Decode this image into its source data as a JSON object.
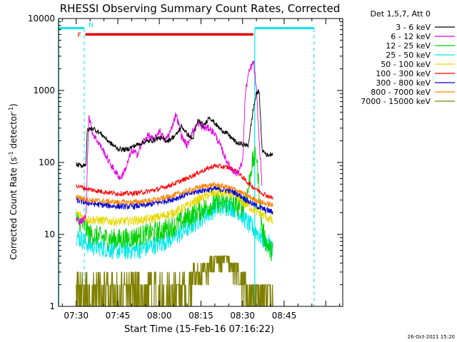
{
  "chart_data": {
    "type": "line",
    "title": "RHESSI Observing Summary Count Rates, Corrected",
    "xlabel": "Start Time (15-Feb-16 07:16:22)",
    "ylabel_main": "Corrected Count Rate (s",
    "ylabel_sup": "-1",
    "ylabel_mid": " detector",
    "ylabel_end": ")",
    "xlim_minutes": [
      -6.37,
      96.13
    ],
    "ylim": [
      1,
      10000
    ],
    "yscale": "log",
    "x_ticks": [
      {
        "m": 0,
        "label": "07:30"
      },
      {
        "m": 15,
        "label": "07:45"
      },
      {
        "m": 30,
        "label": "08:00"
      },
      {
        "m": 45,
        "label": "08:15"
      },
      {
        "m": 60,
        "label": "08:30"
      },
      {
        "m": 75,
        "label": "08:45"
      }
    ],
    "y_ticks": [
      {
        "v": 1,
        "label": "1"
      },
      {
        "v": 10,
        "label": "10"
      },
      {
        "v": 100,
        "label": "100"
      },
      {
        "v": 1000,
        "label": "1000"
      },
      {
        "v": 10000,
        "label": "10000"
      }
    ],
    "legend_position": "outside-right",
    "legend_header": "Det 1,5,7, Att 0",
    "series": [
      {
        "name": "3 - 6 keV",
        "color": "#000000",
        "x": [
          0,
          2,
          3.5,
          4,
          6,
          9,
          12,
          15,
          18,
          21,
          24,
          27,
          30,
          33,
          36,
          38,
          40,
          42,
          44,
          46,
          48,
          50,
          52,
          54,
          56,
          58,
          60,
          61,
          62,
          63,
          64,
          65,
          66,
          67,
          69,
          71
        ],
        "y": [
          93,
          90,
          95,
          280,
          300,
          250,
          190,
          155,
          150,
          170,
          190,
          200,
          220,
          200,
          240,
          320,
          250,
          210,
          390,
          320,
          430,
          350,
          290,
          260,
          220,
          185,
          180,
          175,
          170,
          320,
          600,
          900,
          1000,
          150,
          125,
          135
        ]
      },
      {
        "name": "6 - 12 keV",
        "color": "#e000e0",
        "x": [
          0,
          2,
          3.5,
          4.5,
          6,
          8,
          10,
          12,
          14,
          16,
          18,
          20,
          22,
          24,
          26,
          28,
          30,
          32,
          34,
          36,
          38,
          39,
          40,
          42,
          44,
          46,
          48,
          50,
          52,
          54,
          56,
          58,
          60,
          61,
          62,
          63,
          64,
          65,
          66,
          67
        ],
        "y": [
          16,
          15,
          18,
          450,
          250,
          190,
          140,
          100,
          75,
          60,
          85,
          145,
          130,
          190,
          240,
          200,
          280,
          200,
          270,
          480,
          230,
          200,
          170,
          270,
          350,
          300,
          300,
          250,
          170,
          110,
          80,
          70,
          100,
          900,
          1600,
          2100,
          2500,
          1000,
          200,
          50
        ]
      },
      {
        "name": "12 - 25 keV",
        "color": "#00d000",
        "x": [
          0,
          3,
          5,
          10,
          15,
          20,
          25,
          30,
          35,
          40,
          45,
          50,
          55,
          58,
          60,
          62,
          63,
          64,
          65,
          66,
          67,
          68,
          69,
          70,
          71
        ],
        "y": [
          16,
          13,
          10,
          9,
          8.5,
          9,
          10,
          11,
          13,
          17,
          22,
          27,
          28,
          25,
          24,
          40,
          80,
          110,
          130,
          40,
          12,
          9,
          7,
          6,
          6
        ]
      },
      {
        "name": "25 - 50 keV",
        "color": "#00e8e8",
        "x": [
          0,
          3,
          5,
          10,
          15,
          20,
          25,
          30,
          35,
          40,
          45,
          50,
          55,
          58,
          60,
          62,
          64,
          66,
          68,
          70,
          71
        ],
        "y": [
          9.5,
          8,
          7,
          6.5,
          6,
          6,
          6.5,
          7.5,
          9,
          12,
          17,
          23,
          25,
          22,
          18,
          14,
          12,
          10,
          8,
          7,
          6.5
        ]
      },
      {
        "name": "50 - 100 keV",
        "color": "#e8d800",
        "x": [
          0,
          3,
          5,
          10,
          15,
          20,
          25,
          30,
          35,
          40,
          45,
          50,
          55,
          58,
          60,
          62,
          64,
          66,
          68,
          70,
          71
        ],
        "y": [
          20,
          17,
          16,
          15.5,
          15,
          15.5,
          16,
          17.5,
          20,
          25,
          32,
          38,
          37,
          33,
          28,
          25,
          22,
          20,
          18,
          16,
          15
        ]
      },
      {
        "name": "100 - 300 keV",
        "color": "#ff0000",
        "x": [
          0,
          3,
          5,
          10,
          15,
          20,
          25,
          30,
          35,
          40,
          45,
          50,
          55,
          58,
          60,
          62,
          64,
          66,
          68,
          70,
          71
        ],
        "y": [
          48,
          44,
          42,
          39,
          37,
          37,
          39,
          43,
          50,
          60,
          75,
          90,
          85,
          75,
          62,
          52,
          45,
          40,
          36,
          33,
          32
        ]
      },
      {
        "name": "300 - 800 keV",
        "color": "#0000d0",
        "x": [
          0,
          3,
          5,
          10,
          15,
          20,
          25,
          30,
          35,
          40,
          45,
          50,
          55,
          58,
          60,
          62,
          64,
          66,
          68,
          70,
          71
        ],
        "y": [
          30,
          28,
          27,
          25.5,
          24.5,
          24.5,
          25.5,
          28,
          31,
          36,
          41,
          43,
          41,
          37,
          33,
          29,
          26,
          24,
          22,
          21,
          20
        ]
      },
      {
        "name": "800 - 7000 keV",
        "color": "#ff8000",
        "x": [
          0,
          3,
          5,
          10,
          15,
          20,
          25,
          30,
          35,
          40,
          45,
          50,
          55,
          58,
          60,
          62,
          64,
          66,
          68,
          70,
          71
        ],
        "y": [
          34,
          31,
          30,
          29,
          28,
          28,
          29,
          31,
          35,
          40,
          46,
          49,
          45,
          41,
          37,
          34,
          31,
          29,
          27,
          26,
          25
        ]
      },
      {
        "name": "7000 - 15000 keV",
        "color": "#808000",
        "x": [
          0,
          3,
          5,
          10,
          15,
          20,
          25,
          30,
          35,
          40,
          42,
          45,
          48,
          50,
          52,
          55,
          58,
          60,
          62,
          64,
          66,
          71
        ],
        "y": [
          1.5,
          1.6,
          1.5,
          1.5,
          1.5,
          1.6,
          1.5,
          1.5,
          1.6,
          1.8,
          2.5,
          3,
          3.5,
          4.2,
          4.3,
          4,
          3,
          2.3,
          1.5,
          1.2,
          1,
          1
        ]
      }
    ],
    "annotations": {
      "night_label": "N",
      "flare_label": "F",
      "night_color": "#00e8e8",
      "flare_color": "#e00000",
      "night_start_m": -6.37,
      "night_end_m": 2.9,
      "night2_start_m": 64.4,
      "night2_end_m": 85.8,
      "attenuator_dashes_m": [
        2.9,
        85.8
      ],
      "flare_start_m": 3.3,
      "flare_end_m": 63.9,
      "data_start_m": 0.2,
      "data_end_m": 71.2
    },
    "timestamp": "26-Oct-2021 15:20"
  }
}
